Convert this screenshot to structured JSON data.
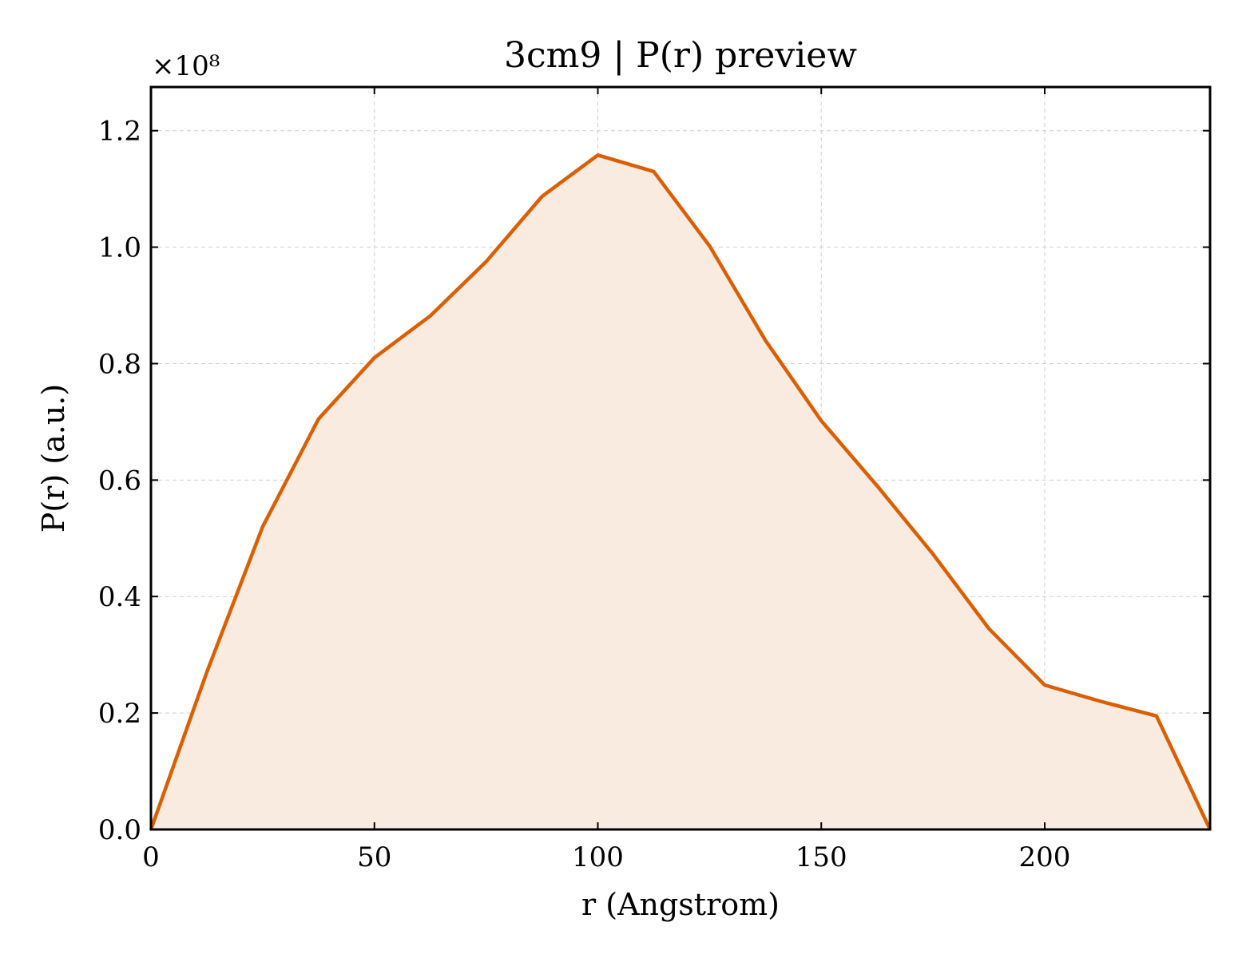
{
  "chart_data": {
    "type": "area",
    "title": "3cm9 | P(r) preview",
    "xlabel": "r (Angstrom)",
    "ylabel": "P(r) (a.u.)",
    "y_offset_label": "×10⁸",
    "y_scale": 100000000,
    "xlim": [
      0,
      237
    ],
    "ylim": [
      0,
      1.275
    ],
    "xticks": [
      0,
      50,
      100,
      150,
      200
    ],
    "xtick_labels": [
      "0",
      "50",
      "100",
      "150",
      "200"
    ],
    "yticks": [
      0.0,
      0.2,
      0.4,
      0.6,
      0.8,
      1.0,
      1.2
    ],
    "ytick_labels": [
      "0.0",
      "0.2",
      "0.4",
      "0.6",
      "0.8",
      "1.0",
      "1.2"
    ],
    "grid": true,
    "colors": {
      "line": "#d95f02",
      "fill": "#f9ebe0"
    },
    "series": [
      {
        "x": [
          0,
          12.5,
          25,
          37.5,
          50,
          62.5,
          75,
          87.5,
          100,
          112.5,
          125,
          137.5,
          150,
          162.5,
          175,
          187.5,
          200,
          212.5,
          225,
          237
        ],
        "y": [
          0.0,
          0.27,
          0.52,
          0.705,
          0.81,
          0.882,
          0.975,
          1.087,
          1.158,
          1.13,
          1.002,
          0.84,
          0.702,
          0.59,
          0.473,
          0.345,
          0.248,
          0.22,
          0.195,
          0.0
        ]
      }
    ]
  }
}
